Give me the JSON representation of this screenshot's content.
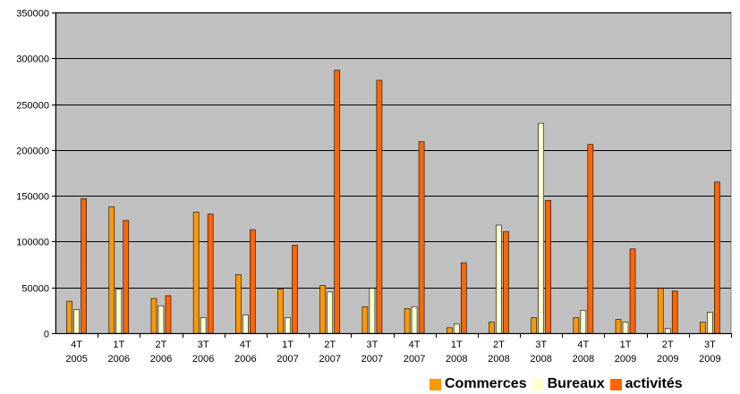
{
  "chart_data": {
    "type": "bar",
    "categories": [
      [
        "4T",
        "2005"
      ],
      [
        "1T",
        "2006"
      ],
      [
        "2T",
        "2006"
      ],
      [
        "3T",
        "2006"
      ],
      [
        "4T",
        "2006"
      ],
      [
        "1T",
        "2007"
      ],
      [
        "2T",
        "2007"
      ],
      [
        "3T",
        "2007"
      ],
      [
        "4T",
        "2007"
      ],
      [
        "1T",
        "2008"
      ],
      [
        "2T",
        "2008"
      ],
      [
        "3T",
        "2008"
      ],
      [
        "4T",
        "2008"
      ],
      [
        "1T",
        "2009"
      ],
      [
        "2T",
        "2009"
      ],
      [
        "3T",
        "2009"
      ]
    ],
    "series": [
      {
        "name": "Commerces",
        "color": "#ff9900",
        "values": [
          35000,
          138000,
          38000,
          132000,
          64000,
          48000,
          52000,
          29000,
          27000,
          6000,
          12000,
          17000,
          17000,
          15000,
          49000,
          12000
        ]
      },
      {
        "name": "Bureaux",
        "color": "#ffffcc",
        "values": [
          26000,
          48000,
          30000,
          17000,
          20000,
          17000,
          45000,
          49000,
          29000,
          10000,
          118000,
          229000,
          25000,
          12000,
          5000,
          23000
        ]
      },
      {
        "name": "activités",
        "color": "#ff6600",
        "values": [
          147000,
          123000,
          41000,
          130000,
          113000,
          96000,
          287000,
          276000,
          209000,
          77000,
          111000,
          145000,
          206000,
          92000,
          46000,
          165000
        ]
      }
    ],
    "ylim": [
      0,
      350000
    ],
    "yticks": [
      0,
      50000,
      100000,
      150000,
      200000,
      250000,
      300000,
      350000
    ],
    "plot_bg": "#c0c0c0",
    "grid": true,
    "legend_position": "bottom-right"
  }
}
